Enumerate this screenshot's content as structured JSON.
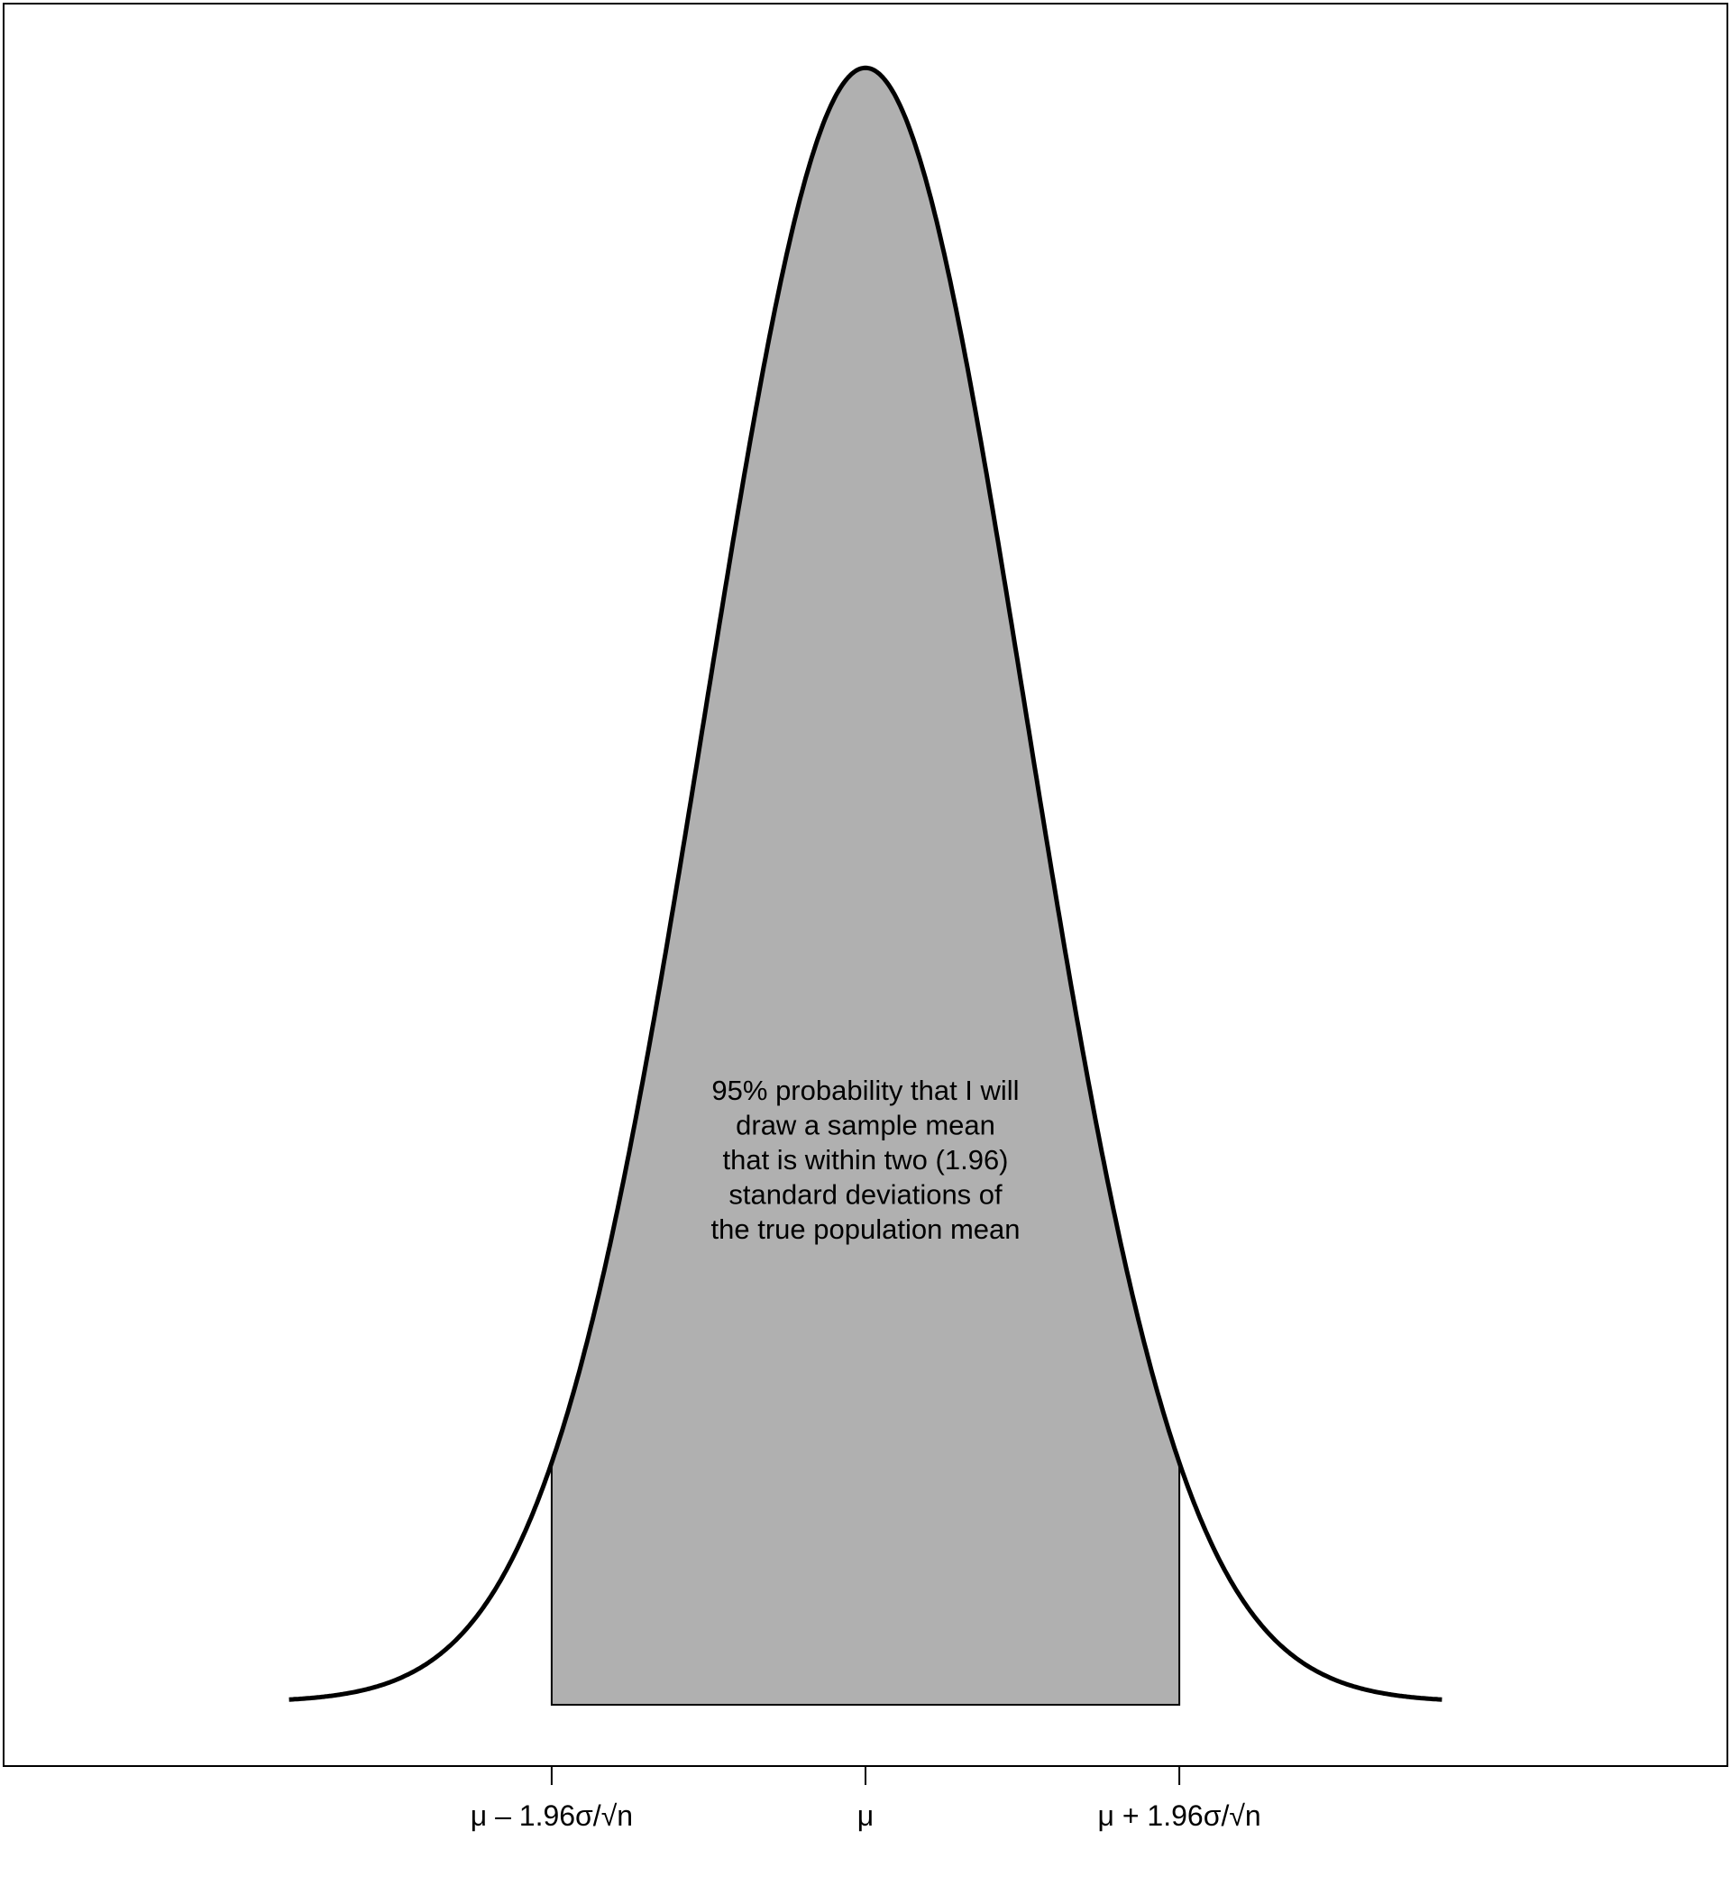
{
  "chart_data": {
    "type": "area",
    "distribution": "normal",
    "xlim": [
      -3.6,
      3.6
    ],
    "ylim": [
      0,
      0.399
    ],
    "shaded_interval": [
      -1.96,
      1.96
    ],
    "shaded_probability": 0.95,
    "tick_positions": [
      -1.96,
      0,
      1.96
    ],
    "tick_labels": [
      "μ – 1.96σ/√n",
      "μ",
      "μ + 1.96σ/√n"
    ],
    "annotation": [
      "95% probability that I will",
      "draw a sample mean",
      "that is within two (1.96)",
      "standard deviations of",
      "the true population mean"
    ],
    "title": "",
    "xlabel": "",
    "ylabel": "",
    "grid": false,
    "legend": "none",
    "colors": {
      "fill": "#b0b0b0",
      "curve": "#000000",
      "frame": "#000000",
      "background": "#ffffff"
    }
  }
}
